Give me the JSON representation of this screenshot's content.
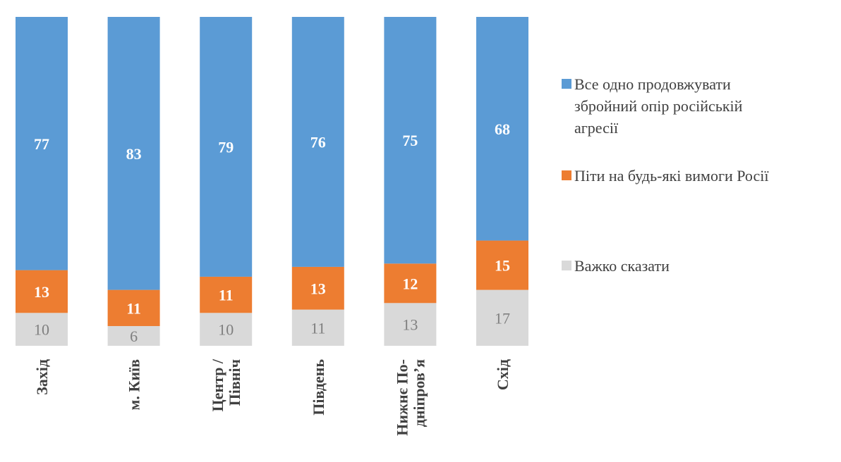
{
  "chart_data": {
    "type": "bar",
    "stacked": true,
    "percent_stacked": true,
    "categories": [
      "Захід",
      "м. Київ",
      "Центр / Північ",
      "Південь",
      "Нижнє По-дніпров’я",
      "Схід"
    ],
    "category_lines": [
      [
        "Захід"
      ],
      [
        "м. Київ"
      ],
      [
        "Центр /",
        "Північ"
      ],
      [
        "Південь"
      ],
      [
        "Нижнє По-",
        "дніпров’я"
      ],
      [
        "Схід"
      ]
    ],
    "series": [
      {
        "name": "Важко сказати",
        "values": [
          10,
          6,
          10,
          11,
          13,
          17
        ],
        "color": "#d9d9d9",
        "label_color": "#7f7f7f",
        "label_bold": false
      },
      {
        "name": "Піти на будь-які вимоги Росії",
        "values": [
          13,
          11,
          11,
          13,
          12,
          15
        ],
        "color": "#ed7d31",
        "label_color": "#ffffff",
        "label_bold": true
      },
      {
        "name": "Все одно продовжувати збройний опір російській агресії",
        "values": [
          77,
          83,
          79,
          76,
          75,
          68
        ],
        "color": "#5b9bd5",
        "label_color": "#ffffff",
        "label_bold": true
      }
    ],
    "legend": {
      "position": "right",
      "items": [
        {
          "color": "#5b9bd5",
          "lines": [
            "Все одно продовжувати",
            "збройний опір російській",
            "агресії"
          ]
        },
        {
          "color": "#ed7d31",
          "lines": [
            "Піти на будь-які вимоги Росії"
          ]
        },
        {
          "color": "#d9d9d9",
          "lines": [
            "Важко сказати"
          ]
        }
      ]
    },
    "ylim": [
      0,
      100
    ],
    "grid": false,
    "title": "",
    "xlabel": "",
    "ylabel": ""
  }
}
